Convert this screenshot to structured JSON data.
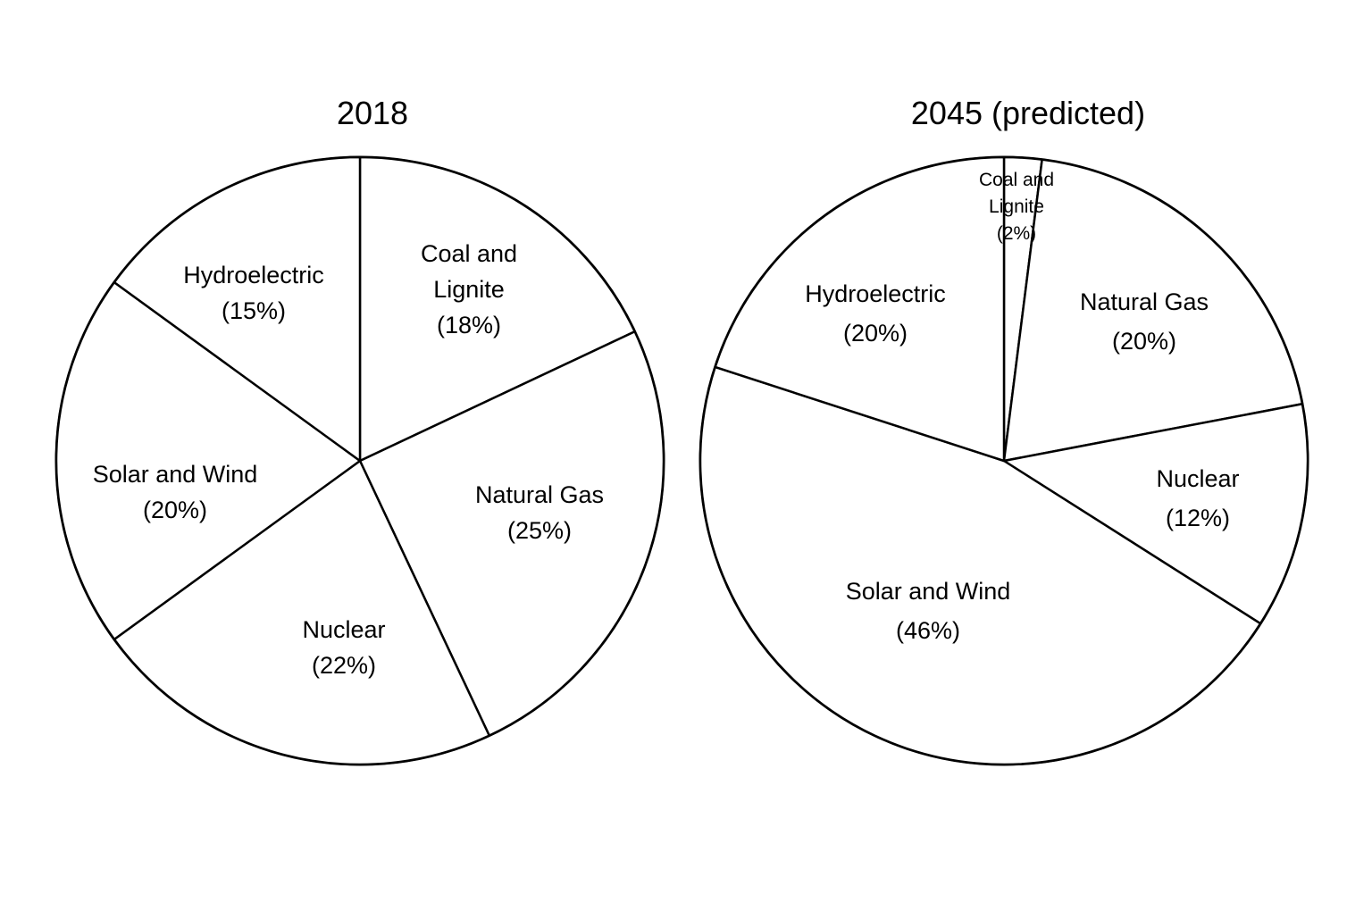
{
  "chart_data": [
    {
      "type": "pie",
      "title": "2018",
      "legend": "none",
      "direction": "clockwise",
      "start": "top",
      "slices": [
        {
          "name": "Coal and Lignite",
          "value": 18,
          "label_lines": [
            "Coal and",
            "Lignite",
            "(18%)"
          ]
        },
        {
          "name": "Natural Gas",
          "value": 25,
          "label_lines": [
            "Natural Gas",
            "(25%)"
          ]
        },
        {
          "name": "Nuclear",
          "value": 22,
          "label_lines": [
            "Nuclear",
            "(22%)"
          ]
        },
        {
          "name": "Solar and Wind",
          "value": 20,
          "label_lines": [
            "Solar and Wind",
            "(20%)"
          ]
        },
        {
          "name": "Hydroelectric",
          "value": 15,
          "label_lines": [
            "Hydroelectric",
            "(15%)"
          ]
        }
      ]
    },
    {
      "type": "pie",
      "title": "2045 (predicted)",
      "legend": "none",
      "direction": "clockwise",
      "start": "top",
      "slices": [
        {
          "name": "Coal and Lignite",
          "value": 2,
          "label_lines": [
            "Coal and",
            "Lignite",
            "(2%)"
          ]
        },
        {
          "name": "Natural Gas",
          "value": 20,
          "label_lines": [
            "Natural Gas",
            "(20%)"
          ]
        },
        {
          "name": "Nuclear",
          "value": 12,
          "label_lines": [
            "Nuclear",
            "(12%)"
          ]
        },
        {
          "name": "Solar and Wind",
          "value": 46,
          "label_lines": [
            "Solar and Wind",
            "(46%)"
          ]
        },
        {
          "name": "Hydroelectric",
          "value": 20,
          "label_lines": [
            "Hydroelectric",
            "(20%)"
          ]
        }
      ]
    }
  ],
  "colors": {
    "fill": "#ffffff",
    "stroke": "#000000",
    "text": "#000000"
  }
}
